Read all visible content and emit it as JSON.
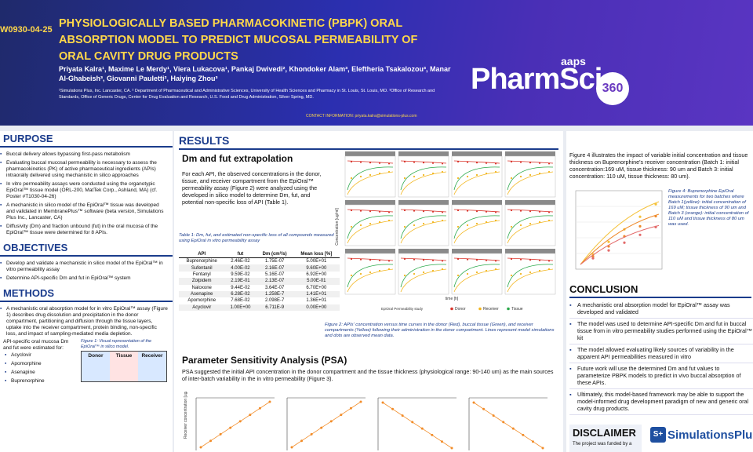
{
  "header": {
    "poster_id": "W0930-04-25",
    "title": "PHYSIOLOGICALLY BASED PHARMACOKINETIC (PBPK) ORAL ABSORPTION MODEL TO PREDICT MUCOSAL PERMEABILITY OF ORAL CAVITY DRUG PRODUCTS",
    "authors": "Priyata Kalra¹, Maxime Le Merdy¹, Viera Lukacova¹, Pankaj Dwivedi², Khondoker Alam³, Eleftheria Tsakalozou³, Manar Al-Ghabeish³, Giovanni Pauletti², Haiying Zhou³",
    "affiliations": "¹Simulations Plus, Inc. Lancaster, CA. ² Department of Pharmaceutical and Administrative Sciences, University of Health Sciences and Pharmacy in St. Louis, St. Louis, MO. ³Office of Research and Standards, Office of Generic Drugs, Center for Drug Evaluation and Research, U.S. Food and Drug Administration, Silver Spring, MD.",
    "contact": "CONTACT INFORMATION:  priyata.kalra@simulations-plus.com",
    "logo_aaps": "aaps",
    "logo_pharm": "PharmSci",
    "logo_360": "360"
  },
  "purpose": {
    "heading": "PURPOSE",
    "items": [
      "Buccal delivery allows bypassing first-pass metabolism",
      "Evaluating buccal mucosal permeability is necessary to assess the pharmacokinetics (PK) of active pharmaceutical ingredients (APIs) intraorally delivered using mechanistic in silico approaches",
      "In vitro permeability assays were conducted using the organotypic EpiOral™ tissue model (ORL-200, MatTek Corp., Ashland, MA) (cf. Poster #T1030-04-26)",
      "A mechanistic in silico model of the EpiOral™ tissue was developed and validated in MembranePlus™ software (beta version, Simulations Plus Inc., Lancaster, CA)",
      "Diffusivity (Dm) and fraction unbound (fut) in the oral mucosa of the EpiOral™ tissue were determined for 8 APIs."
    ]
  },
  "objectives": {
    "heading": "OBJECTIVES",
    "items": [
      "Develop and validate a mechanistic in silico model of the EpiOral™ in vitro permeability assay",
      "Determine API-specific Dm and fut in EpiOral™ system"
    ]
  },
  "methods": {
    "heading": "METHODS",
    "items": [
      "A mechanistic oral absorption model for in vitro EpiOral™ assay (Figure 1) describes drug dissolution and precipitation in the donor compartment, partitioning and diffusion through the tissue layers, uptake into the receiver compartment, protein binding, non-specific loss, and impact of sampling-mediated media depletion."
    ],
    "api_intro": "API-specific oral mucosa Dm and fut were estimated for:",
    "apis": [
      "Acyclovir",
      "Apomorphine",
      "Asenapine",
      "Buprenorphine"
    ],
    "fig1_caption": "Figure 1: Visual representation of the EpiOral™ in silico model.",
    "fig1_labels": [
      "Donor",
      "Tissue",
      "Receiver"
    ]
  },
  "results": {
    "heading": "RESULTS",
    "subheading": "Dm and fut extrapolation",
    "intro": "For each API, the observed concentrations in the donor, tissue, and receiver compartment from the EpiOral™ permeability assay (Figure 2) were analyzed using the developed in silico model to determine Dm, fut, and potential non-specific loss of API (Table 1).",
    "table_caption": "Table 1: Dm, fut, and estimated non-specific loss of all compounds measured using EpiOral in vitro permeability assay",
    "table_headers": [
      "API",
      "fut",
      "Dm (cm²/s)",
      "Mean loss [%]"
    ],
    "table_rows": [
      [
        "Buprenorphine",
        "2.46E-02",
        "1.75E-07",
        "5.00E+01"
      ],
      [
        "Sufentanil",
        "4.00E-02",
        "2.16E-07",
        "9.60E+00"
      ],
      [
        "Fentanyl",
        "9.59E-02",
        "5.16E-07",
        "6.92E+00"
      ],
      [
        "Zolpidem",
        "2.19E-01",
        "2.13E-07",
        "5.00E-01"
      ],
      [
        "Naloxone",
        "9.44E-02",
        "3.64E-07",
        "6.70E+00"
      ],
      [
        "Asenapine",
        "6.28E-02",
        "1.258E-7",
        "1.41E+01"
      ],
      [
        "Apomorphine",
        "7.68E-02",
        "2.098E-7",
        "1.36E+01"
      ],
      [
        "Acyclovir",
        "1.00E+00",
        "6.711E-9",
        "0.00E+00"
      ]
    ],
    "fig2_caption": "Figure 2: APIs' concentration versus time curves in the donor (Red), buccal tissue (Green), and receiver compartments (Yellow) following their administration in the donor compartment. Lines represent model simulations and dots are observed mean data.",
    "fig2_ylabel": "Concentration [ug/ml]",
    "fig2_xlabel": "time [h]",
    "fig2_legend_title": "EpiOral Permeability study",
    "fig2_legend": [
      "Donor",
      "Receiver",
      "Tissue"
    ],
    "psa_heading": "Parameter Sensitivity Analysis (PSA)",
    "psa_text": "PSA suggested the initial API concentration in the donor compartment and the tissue thickness (physiological range: 90-140 um) as the main sources of inter-batch variability in the in vitro permeability (Figure 3).",
    "psa_ylabel": "Receiver concentration [ug/ml]"
  },
  "right": {
    "fig4_text": "Figure 4 illustrates the impact of variable initial concentration and tissue thickness on Buprenorphine's receiver concentration (Batch 1: initial concentration:169 uM, tissue thickness: 90 um and Batch 3: initial concentration: 110 uM, tissue thickness: 80 um).",
    "fig4_caption": "Figure 4: Buprenorphine EpiOral measurements for two batches where Batch 1(yellow): initial concentration of 169 uM; tissue thickness of 90 um and Batch 3 (orange): initial concentration of 110 uM and tissue thickness of 80 um was used.",
    "conclusion_heading": "CONCLUSION",
    "conclusions": [
      "A mechanistic oral absorption model for EpiOral™ assay was developed and validated",
      "The model was used to determine API-specific Dm and fut in buccal tissue from in vitro permeability studies performed using the EpiOral™ kit",
      "The model allowed evaluating likely sources of variability in the apparent API permeabilities measured in vitro",
      "Future work will use the determined Dm and fut values to parameterize PBPK models to predict in vivo buccal absorption of these APIs.",
      "Ultimately, this model-based framework may be able to support the model-informed drug development paradigm of new and generic oral cavity drug products."
    ],
    "disclaimer_heading": "DISCLAIMER",
    "disclaimer_text": "The project was funded by a",
    "sim_badge": "S+",
    "sim_name": "SimulationsPlus"
  },
  "colors": {
    "donor": "#d9342b",
    "receiver": "#f2b51c",
    "tissue": "#2aa84a",
    "psa_line": "#f28c28"
  },
  "chart_data": {
    "type": "line",
    "fig2_panels": 12,
    "fig2_series": [
      "Donor",
      "Receiver",
      "Tissue"
    ],
    "psa_panels": 4,
    "psa_trends": [
      "increasing",
      "increasing",
      "decreasing",
      "decreasing"
    ]
  }
}
